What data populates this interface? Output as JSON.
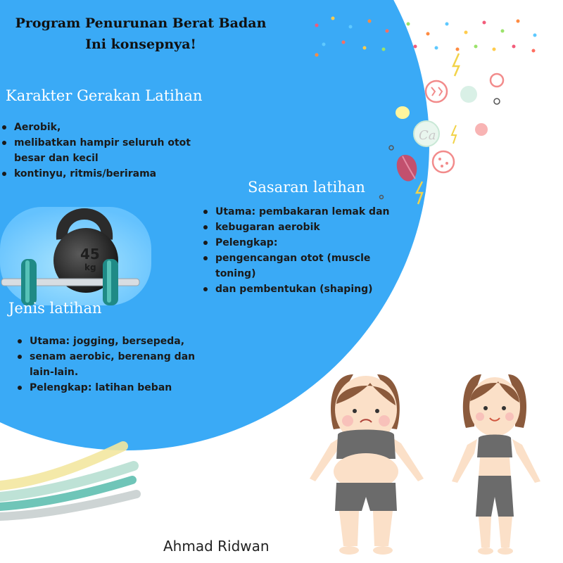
{
  "title": {
    "line1": "Program Penurunan Berat Badan",
    "line2": "Ini konsepnya!"
  },
  "sections": [
    {
      "heading": "Karakter Gerakan Latihan",
      "items": [
        "Aerobik,",
        "melibatkan  hampir seluruh otot besar dan kecil",
        "kontinyu, ritmis/berirama"
      ]
    },
    {
      "heading": "Sasaran latihan",
      "items": [
        "Utama: pembakaran lemak dan",
        "kebugaran aerobik",
        "Pelengkap:",
        " pengencangan otot (muscle toning)",
        "dan pembentukan (shaping)"
      ]
    },
    {
      "heading": "Jenis latihan",
      "items": [
        "Utama: jogging, bersepeda,",
        "senam aerobic, berenang dan lain-lain.",
        "  Pelengkap: latihan beban"
      ]
    }
  ],
  "kettlebell": {
    "weight": "45",
    "unit": "kg"
  },
  "author": "Ahmad Ridwan",
  "colors": {
    "blob": "#3aaaf6",
    "heading": "#ffffff",
    "text": "#1a1a1a",
    "skin": "#fbe0c8",
    "hair": "#8b5a3c",
    "clothes": "#6b6b6b"
  },
  "icons": [
    "confetti-icon",
    "apple-icon",
    "lightning-icon",
    "calcium-icon",
    "cookie-icon",
    "kettlebell-icon",
    "dumbbell-icon",
    "brush-stroke-icon",
    "woman-before-icon",
    "woman-after-icon"
  ]
}
